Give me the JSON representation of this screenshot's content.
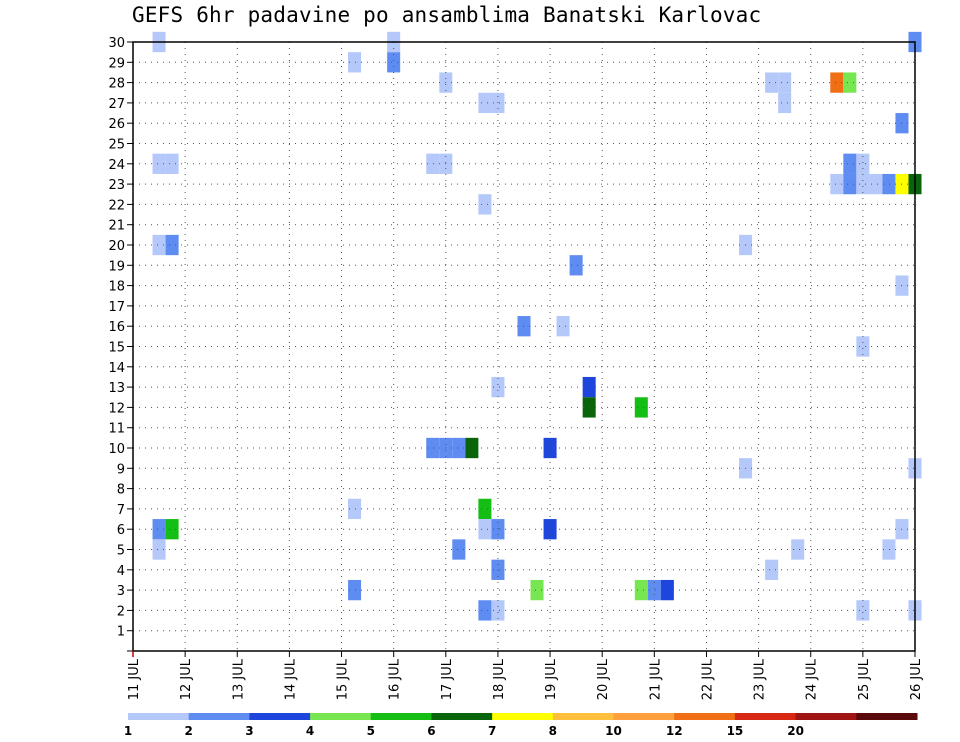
{
  "chart_data": {
    "type": "heatmap",
    "title": "GEFS 6hr padavine po ansamblima Banatski Karlovac",
    "xlabel": "",
    "ylabel": "",
    "x_ticks": [
      "11 JUL",
      "12 JUL",
      "13 JUL",
      "14 JUL",
      "15 JUL",
      "16 JUL",
      "17 JUL",
      "18 JUL",
      "19 JUL",
      "20 JUL",
      "21 JUL",
      "22 JUL",
      "23 JUL",
      "24 JUL",
      "25 JUL",
      "26 JUL"
    ],
    "x_range_days": [
      11,
      26
    ],
    "y_ticks": [
      "1",
      "2",
      "3",
      "4",
      "5",
      "6",
      "7",
      "8",
      "9",
      "10",
      "11",
      "12",
      "13",
      "14",
      "15",
      "16",
      "17",
      "18",
      "19",
      "20",
      "21",
      "22",
      "23",
      "24",
      "25",
      "26",
      "27",
      "28",
      "29",
      "30"
    ],
    "y_range": [
      0,
      30
    ],
    "grid": true,
    "step_hours": 6,
    "colorbar": {
      "labels": [
        "1",
        "2",
        "3",
        "4",
        "5",
        "6",
        "7",
        "8",
        "10",
        "12",
        "15",
        "20"
      ],
      "colors": [
        "#b4c8fa",
        "#5f8cf0",
        "#1e46dc",
        "#78e650",
        "#14be14",
        "#0a640a",
        "#ffff00",
        "#ffbe3c",
        "#ffa03c",
        "#f06e14",
        "#d72814",
        "#a01414",
        "#5a0a0a"
      ]
    },
    "cells": [
      {
        "day": 11.5,
        "member": 30,
        "bin": 0
      },
      {
        "day": 15.25,
        "member": 29,
        "bin": 0
      },
      {
        "day": 16,
        "member": 29,
        "bin": 1
      },
      {
        "day": 16,
        "member": 30,
        "bin": 0
      },
      {
        "day": 17,
        "member": 28,
        "bin": 0
      },
      {
        "day": 23.25,
        "member": 28,
        "bin": 0
      },
      {
        "day": 23.5,
        "member": 28,
        "bin": 0
      },
      {
        "day": 24.5,
        "member": 28,
        "bin": 9
      },
      {
        "day": 24.75,
        "member": 28,
        "bin": 3
      },
      {
        "day": 17.75,
        "member": 27,
        "bin": 0
      },
      {
        "day": 18,
        "member": 27,
        "bin": 0
      },
      {
        "day": 23.5,
        "member": 27,
        "bin": 0
      },
      {
        "day": 25.75,
        "member": 26,
        "bin": 1
      },
      {
        "day": 11.5,
        "member": 24,
        "bin": 0
      },
      {
        "day": 11.75,
        "member": 24,
        "bin": 0
      },
      {
        "day": 16.75,
        "member": 24,
        "bin": 0
      },
      {
        "day": 17,
        "member": 24,
        "bin": 0
      },
      {
        "day": 24.75,
        "member": 24,
        "bin": 1
      },
      {
        "day": 25,
        "member": 24,
        "bin": 0
      },
      {
        "day": 24.5,
        "member": 23,
        "bin": 0
      },
      {
        "day": 24.75,
        "member": 23,
        "bin": 1
      },
      {
        "day": 25,
        "member": 23,
        "bin": 0
      },
      {
        "day": 25.25,
        "member": 23,
        "bin": 0
      },
      {
        "day": 25.5,
        "member": 23,
        "bin": 1
      },
      {
        "day": 25.75,
        "member": 23,
        "bin": 6
      },
      {
        "day": 26,
        "member": 23,
        "bin": 5
      },
      {
        "day": 26,
        "member": 30,
        "bin": 1
      },
      {
        "day": 17.75,
        "member": 22,
        "bin": 0
      },
      {
        "day": 11.5,
        "member": 20,
        "bin": 0
      },
      {
        "day": 11.75,
        "member": 20,
        "bin": 1
      },
      {
        "day": 22.75,
        "member": 20,
        "bin": 0
      },
      {
        "day": 19.5,
        "member": 19,
        "bin": 1
      },
      {
        "day": 25.75,
        "member": 18,
        "bin": 0
      },
      {
        "day": 18.5,
        "member": 16,
        "bin": 1
      },
      {
        "day": 19.25,
        "member": 16,
        "bin": 0
      },
      {
        "day": 25,
        "member": 15,
        "bin": 0
      },
      {
        "day": 18,
        "member": 13,
        "bin": 0
      },
      {
        "day": 19.75,
        "member": 13,
        "bin": 2
      },
      {
        "day": 19.75,
        "member": 12,
        "bin": 5
      },
      {
        "day": 20.75,
        "member": 12,
        "bin": 4
      },
      {
        "day": 16.75,
        "member": 10,
        "bin": 1
      },
      {
        "day": 17,
        "member": 10,
        "bin": 1
      },
      {
        "day": 17.25,
        "member": 10,
        "bin": 1
      },
      {
        "day": 17.5,
        "member": 10,
        "bin": 5
      },
      {
        "day": 19,
        "member": 10,
        "bin": 2
      },
      {
        "day": 22.75,
        "member": 9,
        "bin": 0
      },
      {
        "day": 26,
        "member": 9,
        "bin": 0
      },
      {
        "day": 15.25,
        "member": 7,
        "bin": 0
      },
      {
        "day": 17.75,
        "member": 7,
        "bin": 4
      },
      {
        "day": 11.5,
        "member": 6,
        "bin": 1
      },
      {
        "day": 11.75,
        "member": 6,
        "bin": 4
      },
      {
        "day": 17.75,
        "member": 6,
        "bin": 0
      },
      {
        "day": 18,
        "member": 6,
        "bin": 1
      },
      {
        "day": 19,
        "member": 6,
        "bin": 2
      },
      {
        "day": 25.75,
        "member": 6,
        "bin": 0
      },
      {
        "day": 11.5,
        "member": 5,
        "bin": 0
      },
      {
        "day": 17.25,
        "member": 5,
        "bin": 1
      },
      {
        "day": 23.75,
        "member": 5,
        "bin": 0
      },
      {
        "day": 25.5,
        "member": 5,
        "bin": 0
      },
      {
        "day": 18,
        "member": 4,
        "bin": 1
      },
      {
        "day": 23.25,
        "member": 4,
        "bin": 0
      },
      {
        "day": 15.25,
        "member": 3,
        "bin": 1
      },
      {
        "day": 18.75,
        "member": 3,
        "bin": 3
      },
      {
        "day": 20.75,
        "member": 3,
        "bin": 3
      },
      {
        "day": 21,
        "member": 3,
        "bin": 1
      },
      {
        "day": 21.25,
        "member": 3,
        "bin": 2
      },
      {
        "day": 17.75,
        "member": 2,
        "bin": 1
      },
      {
        "day": 18,
        "member": 2,
        "bin": 0
      },
      {
        "day": 25,
        "member": 2,
        "bin": 0
      },
      {
        "day": 26,
        "member": 2,
        "bin": 0
      }
    ]
  }
}
